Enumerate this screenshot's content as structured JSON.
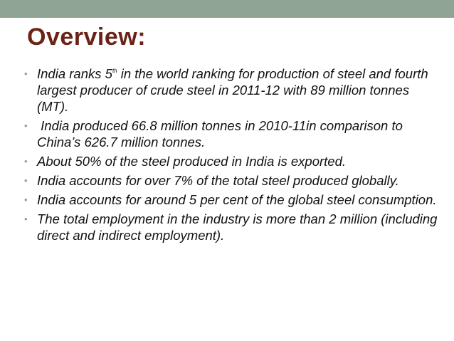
{
  "slide": {
    "title": "Overview:",
    "colors": {
      "top_bar": "#8fa492",
      "title": "#6b2217",
      "bullet_marker": "#8a9f8d",
      "text": "#111111"
    },
    "bullet_marker_glyph": "•",
    "bullets": [
      {
        "prefix": "India ranks 5",
        "superscript": "th",
        "suffix": " in the world ranking for production of steel and fourth largest producer of crude steel in 2011-12 with 89 million tonnes (MT)."
      },
      {
        "text": " India produced 66.8 million tonnes in 2010-11in comparison to China’s 626.7 million tonnes."
      },
      {
        "text": "About 50% of the steel produced in India is exported."
      },
      {
        "text": "India accounts for over 7% of the total steel produced globally."
      },
      {
        "text": "India accounts for around 5 per cent of the global steel consumption."
      },
      {
        "text": "The total employment in the industry is more than 2 million (including direct and indirect employment)."
      }
    ]
  }
}
